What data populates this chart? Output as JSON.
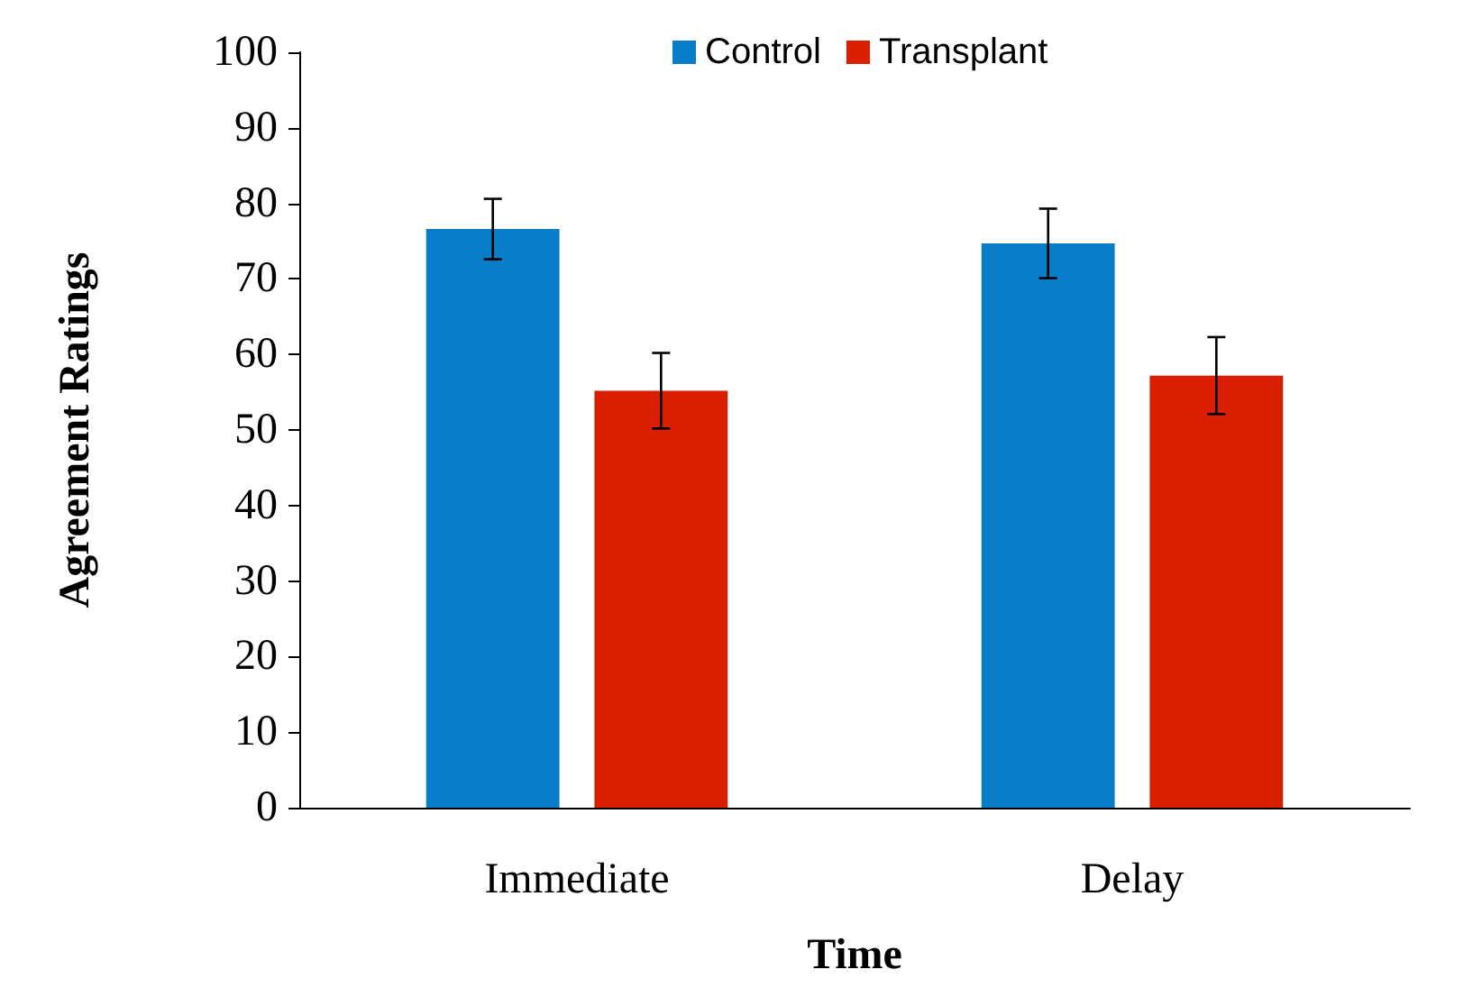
{
  "chart_data": {
    "type": "bar",
    "xlabel": "Time",
    "ylabel": "Agreement Ratings",
    "categories": [
      "Immediate",
      "Delay"
    ],
    "series": [
      {
        "name": "Control",
        "color": "#0a7dc9",
        "values": [
          76.6,
          74.7
        ],
        "errors": [
          4,
          4.6
        ]
      },
      {
        "name": "Transplant",
        "color": "#d91f00",
        "values": [
          55.2,
          57.2
        ],
        "errors": [
          5,
          5.1
        ]
      }
    ],
    "ylim": [
      0,
      100
    ],
    "yticks": [
      0,
      10,
      20,
      30,
      40,
      50,
      60,
      70,
      80,
      90,
      100
    ],
    "grid": false,
    "legend": "top"
  }
}
